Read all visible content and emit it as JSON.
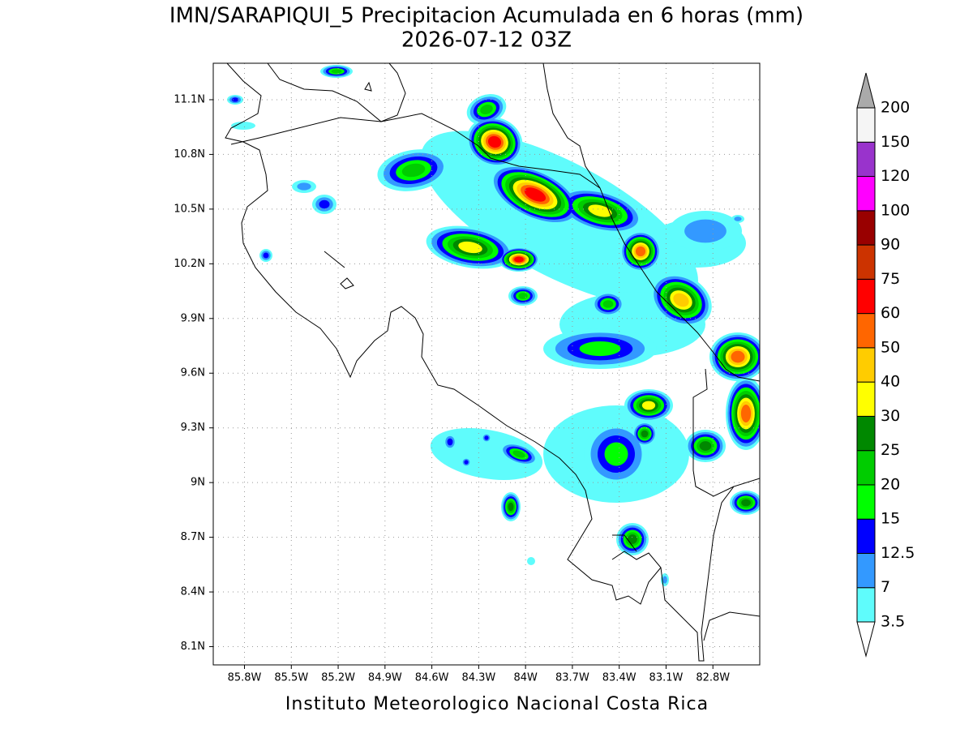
{
  "map": {
    "title": "IMN/SARAPIQUI_5 Precipitacion Acumulada en 6 horas (mm)",
    "subtitle": "2026-07-12 03Z",
    "footer": "Instituto Meteorologico Nacional Costa Rica",
    "xlim": [
      -86.0,
      -82.5
    ],
    "ylim": [
      8.0,
      11.3
    ],
    "xticks": [
      {
        "value": -85.8,
        "label": "85.8W"
      },
      {
        "value": -85.5,
        "label": "85.5W"
      },
      {
        "value": -85.2,
        "label": "85.2W"
      },
      {
        "value": -84.9,
        "label": "84.9W"
      },
      {
        "value": -84.6,
        "label": "84.6W"
      },
      {
        "value": -84.3,
        "label": "84.3W"
      },
      {
        "value": -84.0,
        "label": "84W"
      },
      {
        "value": -83.7,
        "label": "83.7W"
      },
      {
        "value": -83.4,
        "label": "83.4W"
      },
      {
        "value": -83.1,
        "label": "83.1W"
      },
      {
        "value": -82.8,
        "label": "82.8W"
      }
    ],
    "yticks": [
      {
        "value": 11.1,
        "label": "11.1N"
      },
      {
        "value": 10.8,
        "label": "10.8N"
      },
      {
        "value": 10.5,
        "label": "10.5N"
      },
      {
        "value": 10.2,
        "label": "10.2N"
      },
      {
        "value": 9.9,
        "label": "9.9N"
      },
      {
        "value": 9.6,
        "label": "9.6N"
      },
      {
        "value": 9.3,
        "label": "9.3N"
      },
      {
        "value": 9.0,
        "label": "9N"
      },
      {
        "value": 8.7,
        "label": "8.7N"
      },
      {
        "value": 8.4,
        "label": "8.4N"
      },
      {
        "value": 8.1,
        "label": "8.1N"
      }
    ],
    "grid": true,
    "colorbar": {
      "levels": [
        3.5,
        7,
        12.5,
        15,
        20,
        25,
        30,
        40,
        50,
        60,
        75,
        90,
        100,
        120,
        150,
        200
      ],
      "colors": [
        "#5ffcfc",
        "#3399ff",
        "#0000ff",
        "#00ff00",
        "#00cc00",
        "#008800",
        "#ffff00",
        "#ffcc00",
        "#ff6600",
        "#ff0000",
        "#cc3300",
        "#990000",
        "#ff00ff",
        "#9933cc",
        "#f5f5f5"
      ],
      "under_color": "#ffffff",
      "over_color": "#aaaaaa"
    }
  }
}
